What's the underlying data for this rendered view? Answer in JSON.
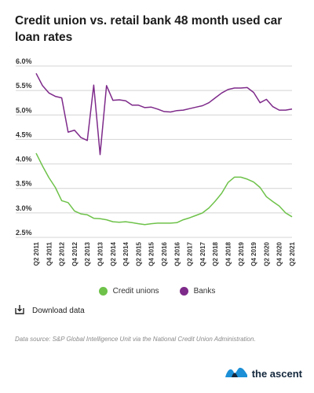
{
  "title": "Credit union vs. retail bank 48 month used car loan rates",
  "legend": {
    "credit_unions": "Credit unions",
    "banks": "Banks"
  },
  "download_label": "Download data",
  "source": "Data source: S&P Global Intelligence Unit via the National Credit Union Administration.",
  "brand": {
    "name": "the ascent"
  },
  "colors": {
    "credit_unions": "#6ec24a",
    "banks": "#7e2a8a",
    "grid": "#d4d4d4",
    "brand_wave": "#1c8fd6"
  },
  "chart_data": {
    "type": "line",
    "title": "Credit union vs. retail bank 48 month used car loan rates",
    "xlabel": "",
    "ylabel": "",
    "ylim": [
      2.5,
      6.0
    ],
    "y_ticks": [
      "6.0%",
      "5.5%",
      "5.0%",
      "4.5%",
      "4.0%",
      "3.5%",
      "3.0%",
      "2.5%"
    ],
    "x": [
      2011.25,
      2011.5,
      2011.75,
      2012.0,
      2012.25,
      2012.5,
      2012.75,
      2013.0,
      2013.25,
      2013.5,
      2013.75,
      2014.0,
      2014.25,
      2014.5,
      2014.75,
      2015.0,
      2015.25,
      2015.5,
      2015.75,
      2016.0,
      2016.25,
      2016.5,
      2016.75,
      2017.0,
      2017.25,
      2017.5,
      2017.75,
      2018.0,
      2018.25,
      2018.5,
      2018.75,
      2019.0,
      2019.25,
      2019.5,
      2019.75,
      2020.0,
      2020.25,
      2020.5,
      2020.75,
      2021.0,
      2021.25
    ],
    "x_tick_labels": [
      "Q2 2011",
      "Q4 2011",
      "Q2 2012",
      "Q4 2012",
      "Q2 2013",
      "Q4 2013",
      "Q2 2014",
      "Q4 2014",
      "Q2 2015",
      "Q4 2015",
      "Q2 2016",
      "Q4 2016",
      "Q2 2017",
      "Q4 2017",
      "Q2 2018",
      "Q4 2018",
      "Q2 2019",
      "Q4 2019",
      "Q2 2020",
      "Q4 2020",
      "Q2 2021"
    ],
    "x_tick_values": [
      2011.25,
      2011.75,
      2012.25,
      2012.75,
      2013.25,
      2013.75,
      2014.25,
      2014.75,
      2015.25,
      2015.75,
      2016.25,
      2016.75,
      2017.25,
      2017.75,
      2018.25,
      2018.75,
      2019.25,
      2019.75,
      2020.25,
      2020.75,
      2021.25
    ],
    "series": [
      {
        "name": "Credit unions",
        "color": "#6ec24a",
        "values": [
          4.22,
          3.96,
          3.72,
          3.52,
          3.25,
          3.21,
          3.04,
          2.98,
          2.96,
          2.89,
          2.88,
          2.86,
          2.82,
          2.81,
          2.82,
          2.8,
          2.78,
          2.76,
          2.78,
          2.79,
          2.79,
          2.79,
          2.8,
          2.86,
          2.9,
          2.95,
          3.0,
          3.1,
          3.24,
          3.4,
          3.62,
          3.73,
          3.73,
          3.69,
          3.63,
          3.52,
          3.33,
          3.23,
          3.14,
          3.0,
          2.92
        ]
      },
      {
        "name": "Banks",
        "color": "#7e2a8a",
        "values": [
          5.85,
          5.6,
          5.45,
          5.38,
          5.35,
          4.65,
          4.69,
          4.54,
          4.48,
          5.61,
          4.19,
          5.6,
          5.3,
          5.31,
          5.29,
          5.2,
          5.2,
          5.15,
          5.16,
          5.12,
          5.07,
          5.06,
          5.09,
          5.1,
          5.13,
          5.16,
          5.19,
          5.25,
          5.35,
          5.45,
          5.52,
          5.55,
          5.55,
          5.56,
          5.46,
          5.25,
          5.32,
          5.17,
          5.1,
          5.1,
          5.12
        ]
      }
    ],
    "grid": true,
    "legend_position": "bottom-center"
  }
}
